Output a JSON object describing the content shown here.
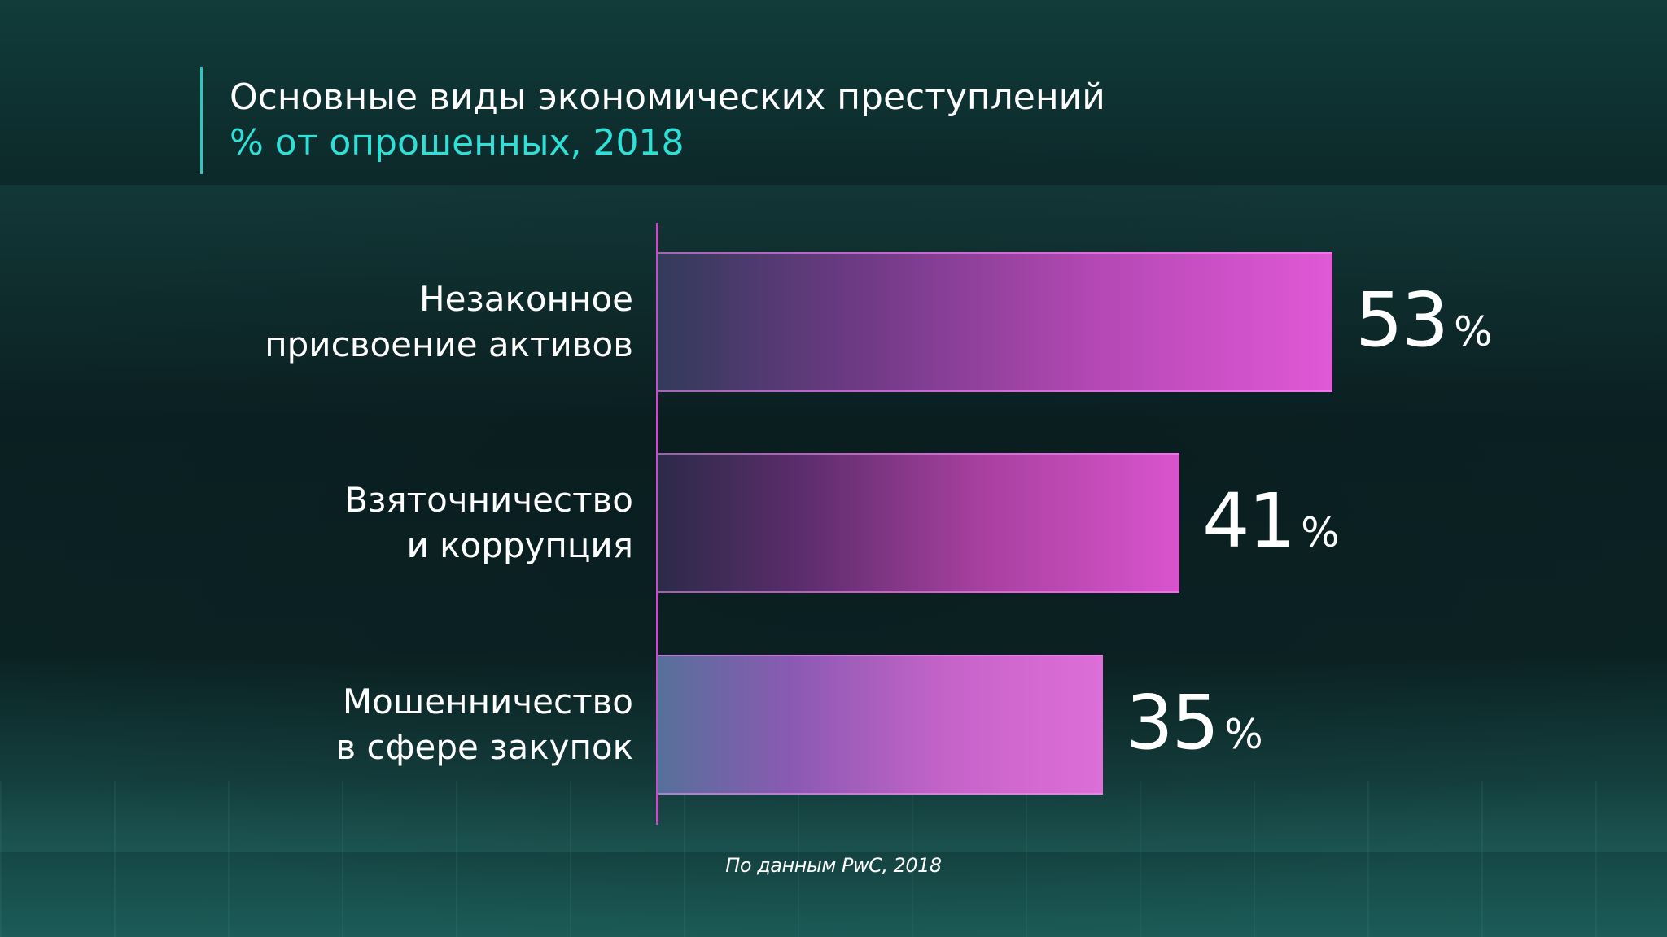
{
  "header": {
    "title": "Основные виды экономических преступлений",
    "subtitle": "% от опрошенных, 2018"
  },
  "source": "По данным PwC, 2018",
  "colors": {
    "accent_teal": "#2fe0d6",
    "bar_magenta": "#e058d6",
    "axis_line": "#c44fc4"
  },
  "chart_data": {
    "type": "bar",
    "orientation": "horizontal",
    "title": "Основные виды экономических преступлений",
    "subtitle": "% от опрошенных, 2018",
    "categories": [
      "Незаконное присвоение активов",
      "Взяточничество и коррупция",
      "Мошенничество в сфере закупок"
    ],
    "category_lines": [
      [
        "Незаконное",
        "присвоение активов"
      ],
      [
        "Взяточничество",
        "и коррупция"
      ],
      [
        "Мошенничество",
        "в сфере закупок"
      ]
    ],
    "values": [
      53,
      41,
      35
    ],
    "value_labels": [
      "53",
      "41",
      "35"
    ],
    "unit": "%",
    "xlabel": "",
    "ylabel": "",
    "grid": false,
    "legend": "none"
  }
}
